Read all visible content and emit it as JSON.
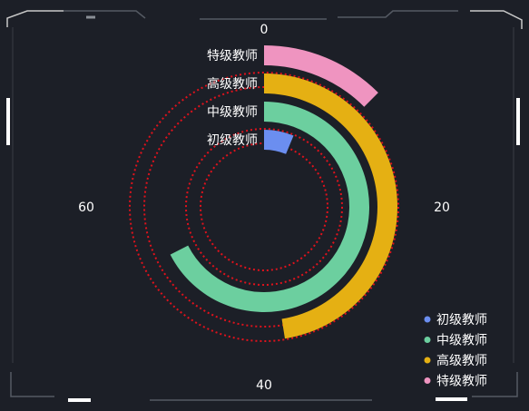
{
  "chart_data": {
    "type": "polar-bar",
    "categories": [
      "初级教师",
      "中级教师",
      "高级教师",
      "特级教师"
    ],
    "values": [
      5,
      54,
      38,
      10
    ],
    "angle_axis": {
      "min": 0,
      "max": 80,
      "tick_labels": [
        "0",
        "20",
        "40",
        "60"
      ]
    },
    "legend": {
      "position": "bottom-right",
      "entries": [
        "初级教师",
        "中级教师",
        "高级教师",
        "特级教师"
      ]
    },
    "colors": [
      "#6b8ef0",
      "#6ccf9f",
      "#e5b013",
      "#ef94c0"
    ],
    "gridline_color": "#e0121c",
    "background": "#1c1f27"
  }
}
